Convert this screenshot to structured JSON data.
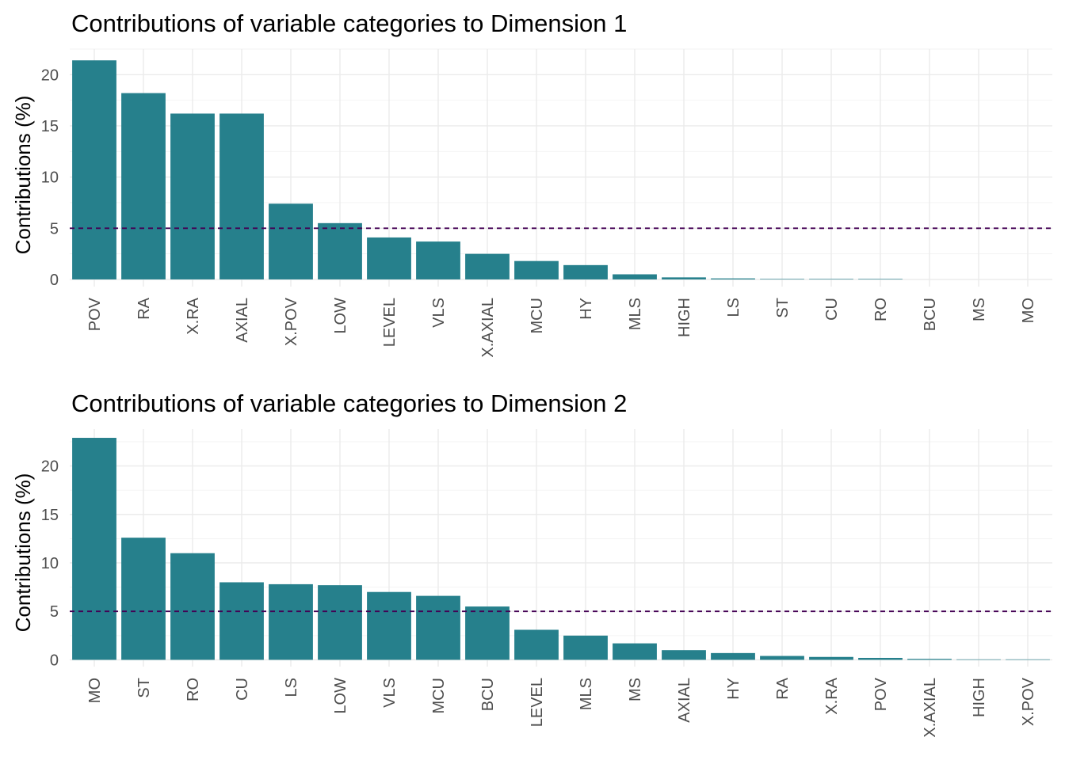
{
  "chart_data": [
    {
      "type": "bar",
      "title": "Contributions of variable categories to Dimension 1",
      "xlabel": "",
      "ylabel": "Contributions (%)",
      "categories": [
        "POV",
        "RA",
        "X.RA",
        "AXIAL",
        "X.POV",
        "LOW",
        "LEVEL",
        "VLS",
        "X.AXIAL",
        "MCU",
        "HY",
        "MLS",
        "HIGH",
        "LS",
        "ST",
        "CU",
        "RO",
        "BCU",
        "MS",
        "MO"
      ],
      "values": [
        21.4,
        18.2,
        16.2,
        16.2,
        7.4,
        5.5,
        4.1,
        3.7,
        2.5,
        1.8,
        1.4,
        0.5,
        0.2,
        0.1,
        0.05,
        0.05,
        0.05,
        0.0,
        0.0,
        0.0
      ],
      "yticks": [
        0,
        5,
        10,
        15,
        20
      ],
      "ylim": [
        -0.7,
        22.5
      ],
      "reference_line": 5,
      "bar_color": "#26808C",
      "reference_color": "#440154",
      "grid": true
    },
    {
      "type": "bar",
      "title": "Contributions of variable categories to Dimension 2",
      "xlabel": "",
      "ylabel": "Contributions (%)",
      "categories": [
        "MO",
        "ST",
        "RO",
        "CU",
        "LS",
        "LOW",
        "VLS",
        "MCU",
        "BCU",
        "LEVEL",
        "MLS",
        "MS",
        "AXIAL",
        "HY",
        "RA",
        "X.RA",
        "POV",
        "X.AXIAL",
        "HIGH",
        "X.POV"
      ],
      "values": [
        22.9,
        12.6,
        11.0,
        8.0,
        7.8,
        7.7,
        7.0,
        6.6,
        5.5,
        3.1,
        2.5,
        1.7,
        1.0,
        0.7,
        0.4,
        0.3,
        0.2,
        0.1,
        0.05,
        0.05
      ],
      "yticks": [
        0,
        5,
        10,
        15,
        20
      ],
      "ylim": [
        -0.7,
        23.8
      ],
      "reference_line": 5,
      "bar_color": "#26808C",
      "reference_color": "#440154",
      "grid": true
    }
  ]
}
